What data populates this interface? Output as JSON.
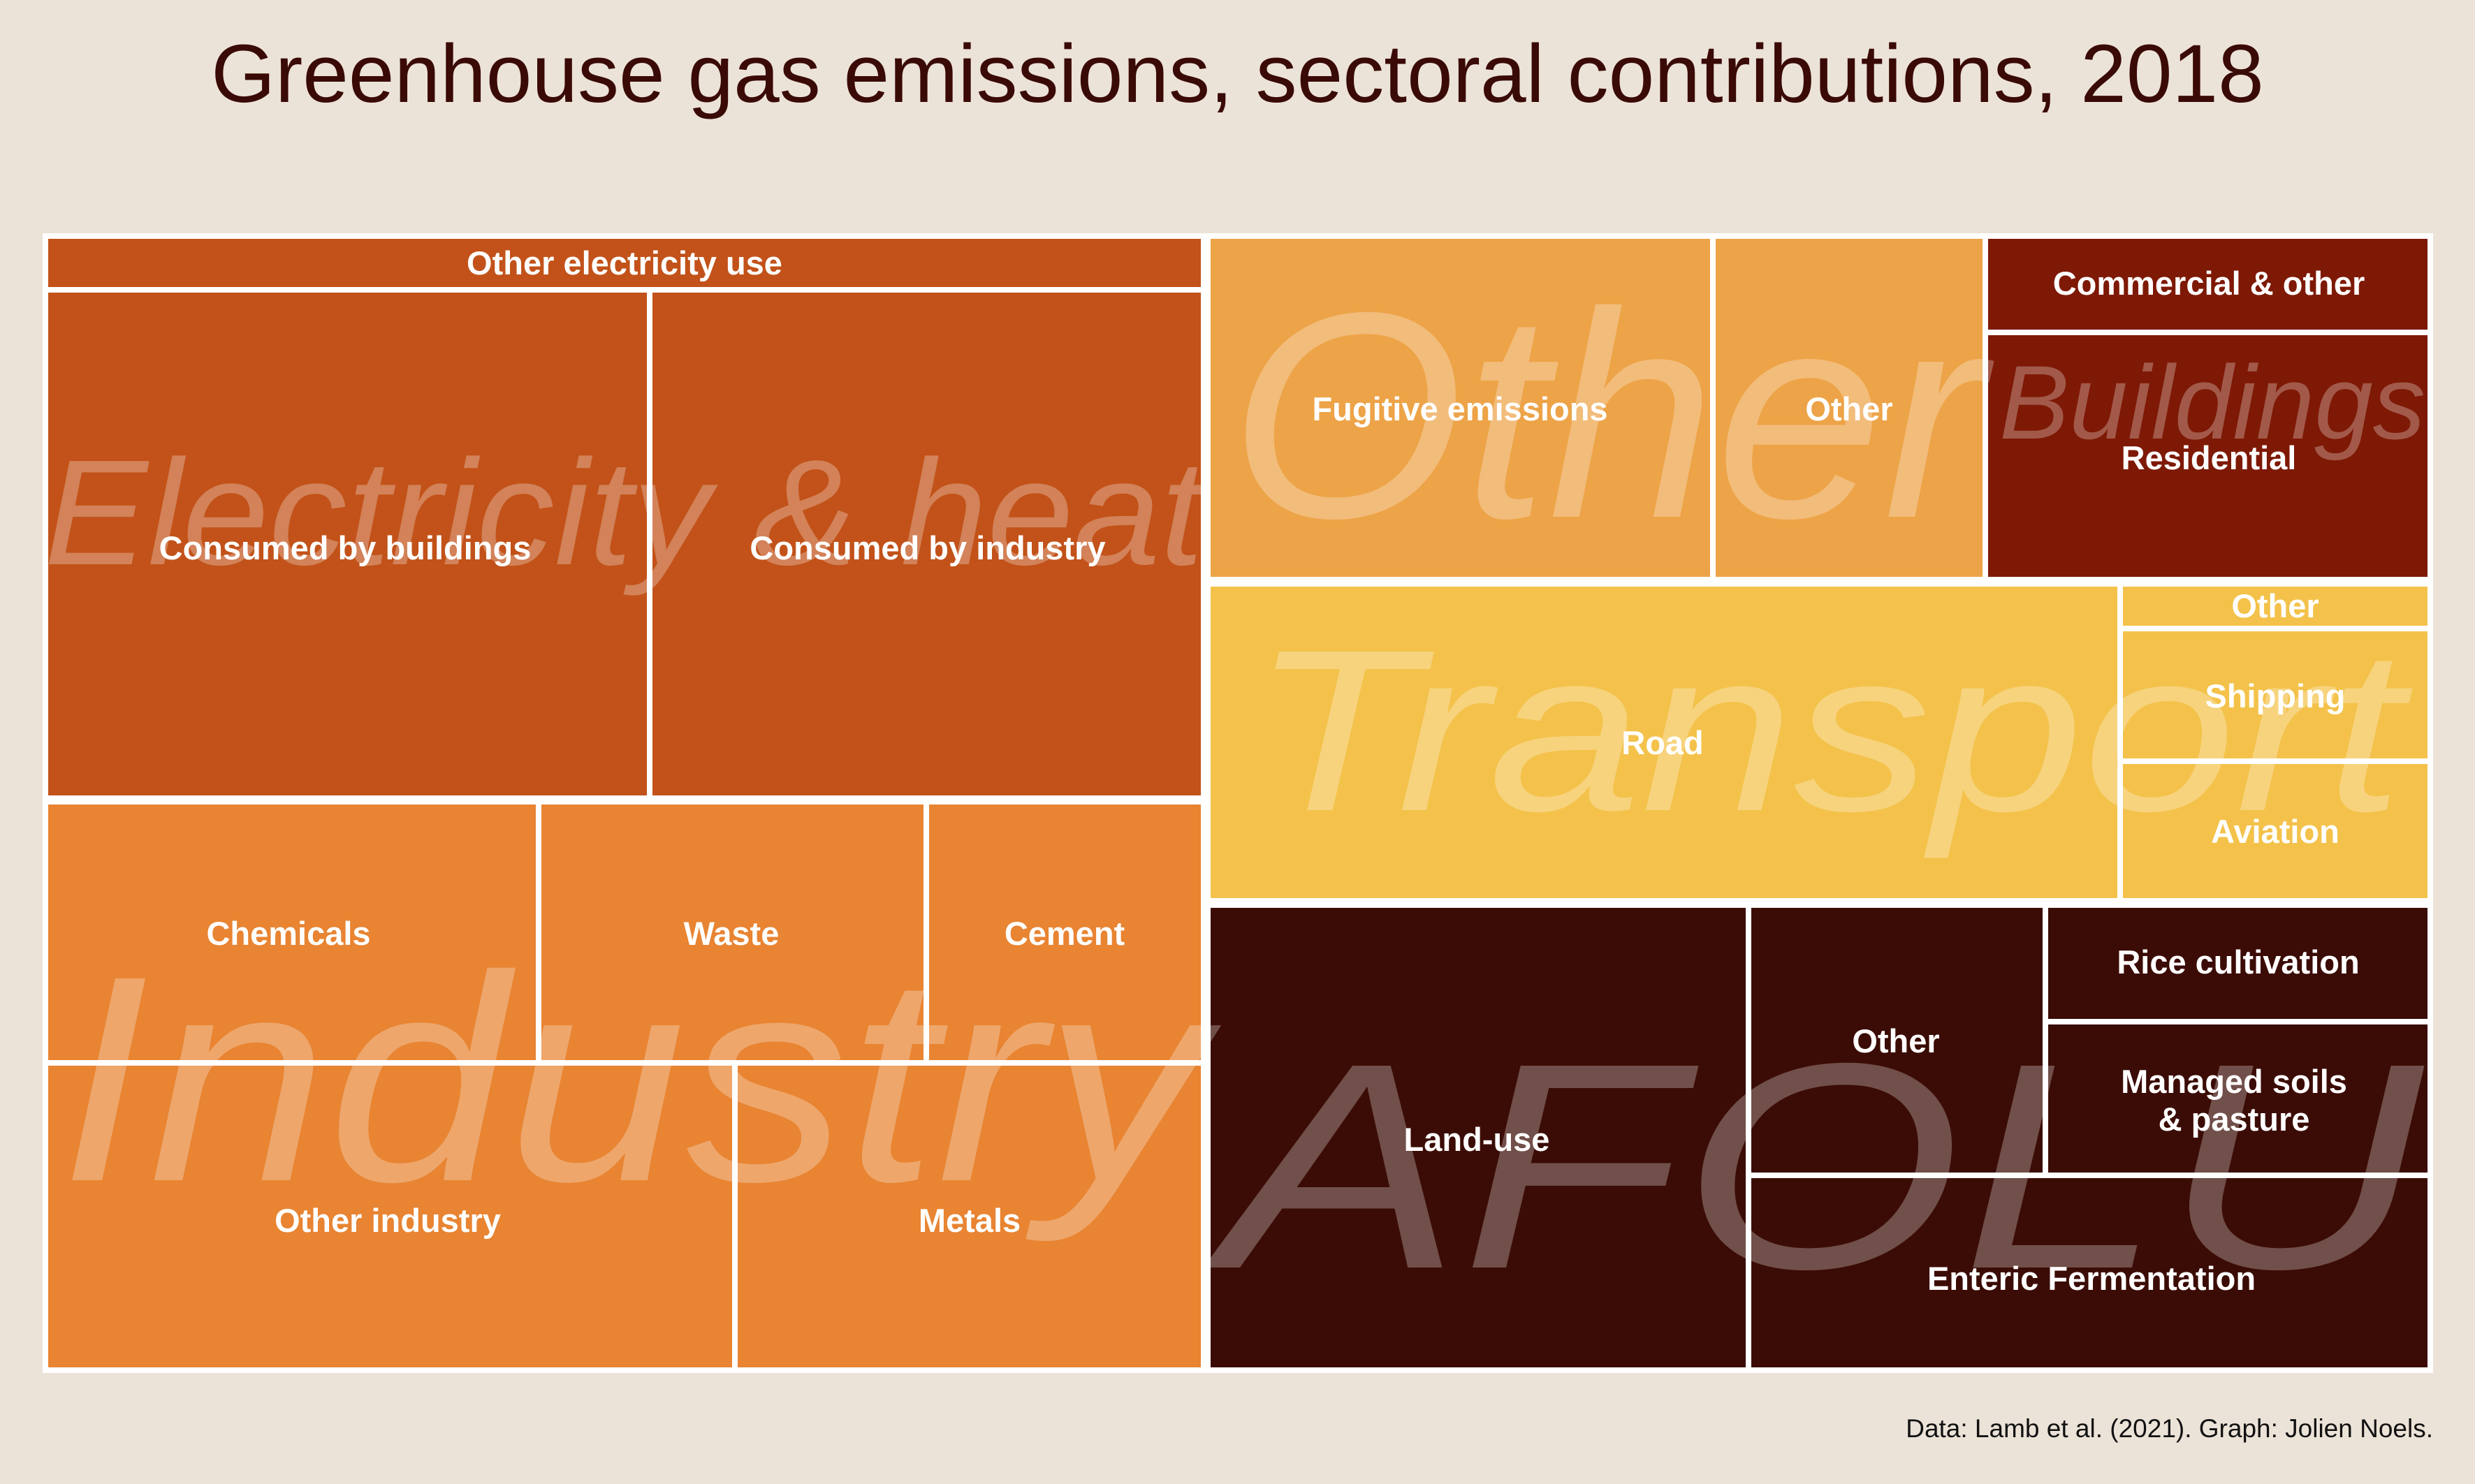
{
  "title": "Greenhouse gas emissions, sectoral contributions, 2018",
  "caption": "Data: Lamb et al. (2021). Graph: Jolien Noels.",
  "chart_data": {
    "type": "treemap",
    "title": "Greenhouse gas emissions, sectoral contributions, 2018",
    "source": "Data: Lamb et al. (2021). Graph: Jolien Noels.",
    "sectors": [
      {
        "name": "Electricity & heat",
        "color": "#c25219"
      },
      {
        "name": "Industry",
        "color": "#e88432"
      },
      {
        "name": "Other",
        "color": "#eda347"
      },
      {
        "name": "Buildings",
        "color": "#7e1905"
      },
      {
        "name": "Transport",
        "color": "#f4c24b"
      },
      {
        "name": "AFOLU",
        "color": "#3b0c05"
      }
    ],
    "cells": [
      {
        "sector": "Electricity & heat",
        "label": [
          "Other electricity use"
        ],
        "share": 2.4
      },
      {
        "sector": "Electricity & heat",
        "label": [
          "Consumed by buildings"
        ],
        "share": 11.1
      },
      {
        "sector": "Electricity & heat",
        "label": [
          "Consumed by industry"
        ],
        "share": 10.6
      },
      {
        "sector": "Industry",
        "label": [
          "Chemicals"
        ],
        "share": 4.9
      },
      {
        "sector": "Industry",
        "label": [
          "Waste"
        ],
        "share": 3.8
      },
      {
        "sector": "Industry",
        "label": [
          "Cement"
        ],
        "share": 2.8
      },
      {
        "sector": "Industry",
        "label": [
          "Other industry"
        ],
        "share": 6.2
      },
      {
        "sector": "Industry",
        "label": [
          "Metals"
        ],
        "share": 4.3
      },
      {
        "sector": "Other",
        "label": [
          "Fugitive emissions"
        ],
        "share": 5.3
      },
      {
        "sector": "Other",
        "label": [
          "Other"
        ],
        "share": 2.8
      },
      {
        "sector": "Buildings",
        "label": [
          "Commercial & other"
        ],
        "share": 1.0
      },
      {
        "sector": "Buildings",
        "label": [
          "Residential"
        ],
        "share": 3.9
      },
      {
        "sector": "Transport",
        "label": [
          "Road"
        ],
        "share": 10.1
      },
      {
        "sector": "Transport",
        "label": [
          "Other"
        ],
        "share": 0.4
      },
      {
        "sector": "Transport",
        "label": [
          "Shipping"
        ],
        "share": 1.3
      },
      {
        "sector": "Transport",
        "label": [
          "Aviation"
        ],
        "share": 1.4
      },
      {
        "sector": "AFOLU",
        "label": [
          "Land-use"
        ],
        "share": 7.4
      },
      {
        "sector": "AFOLU",
        "label": [
          "Other"
        ],
        "share": 3.0
      },
      {
        "sector": "AFOLU",
        "label": [
          "Rice cultivation"
        ],
        "share": 1.1
      },
      {
        "sector": "AFOLU",
        "label": [
          "Managed soils",
          "& pasture"
        ],
        "share": 1.9
      },
      {
        "sector": "AFOLU",
        "label": [
          "Enteric Fermentation"
        ],
        "share": 2.7
      }
    ]
  }
}
